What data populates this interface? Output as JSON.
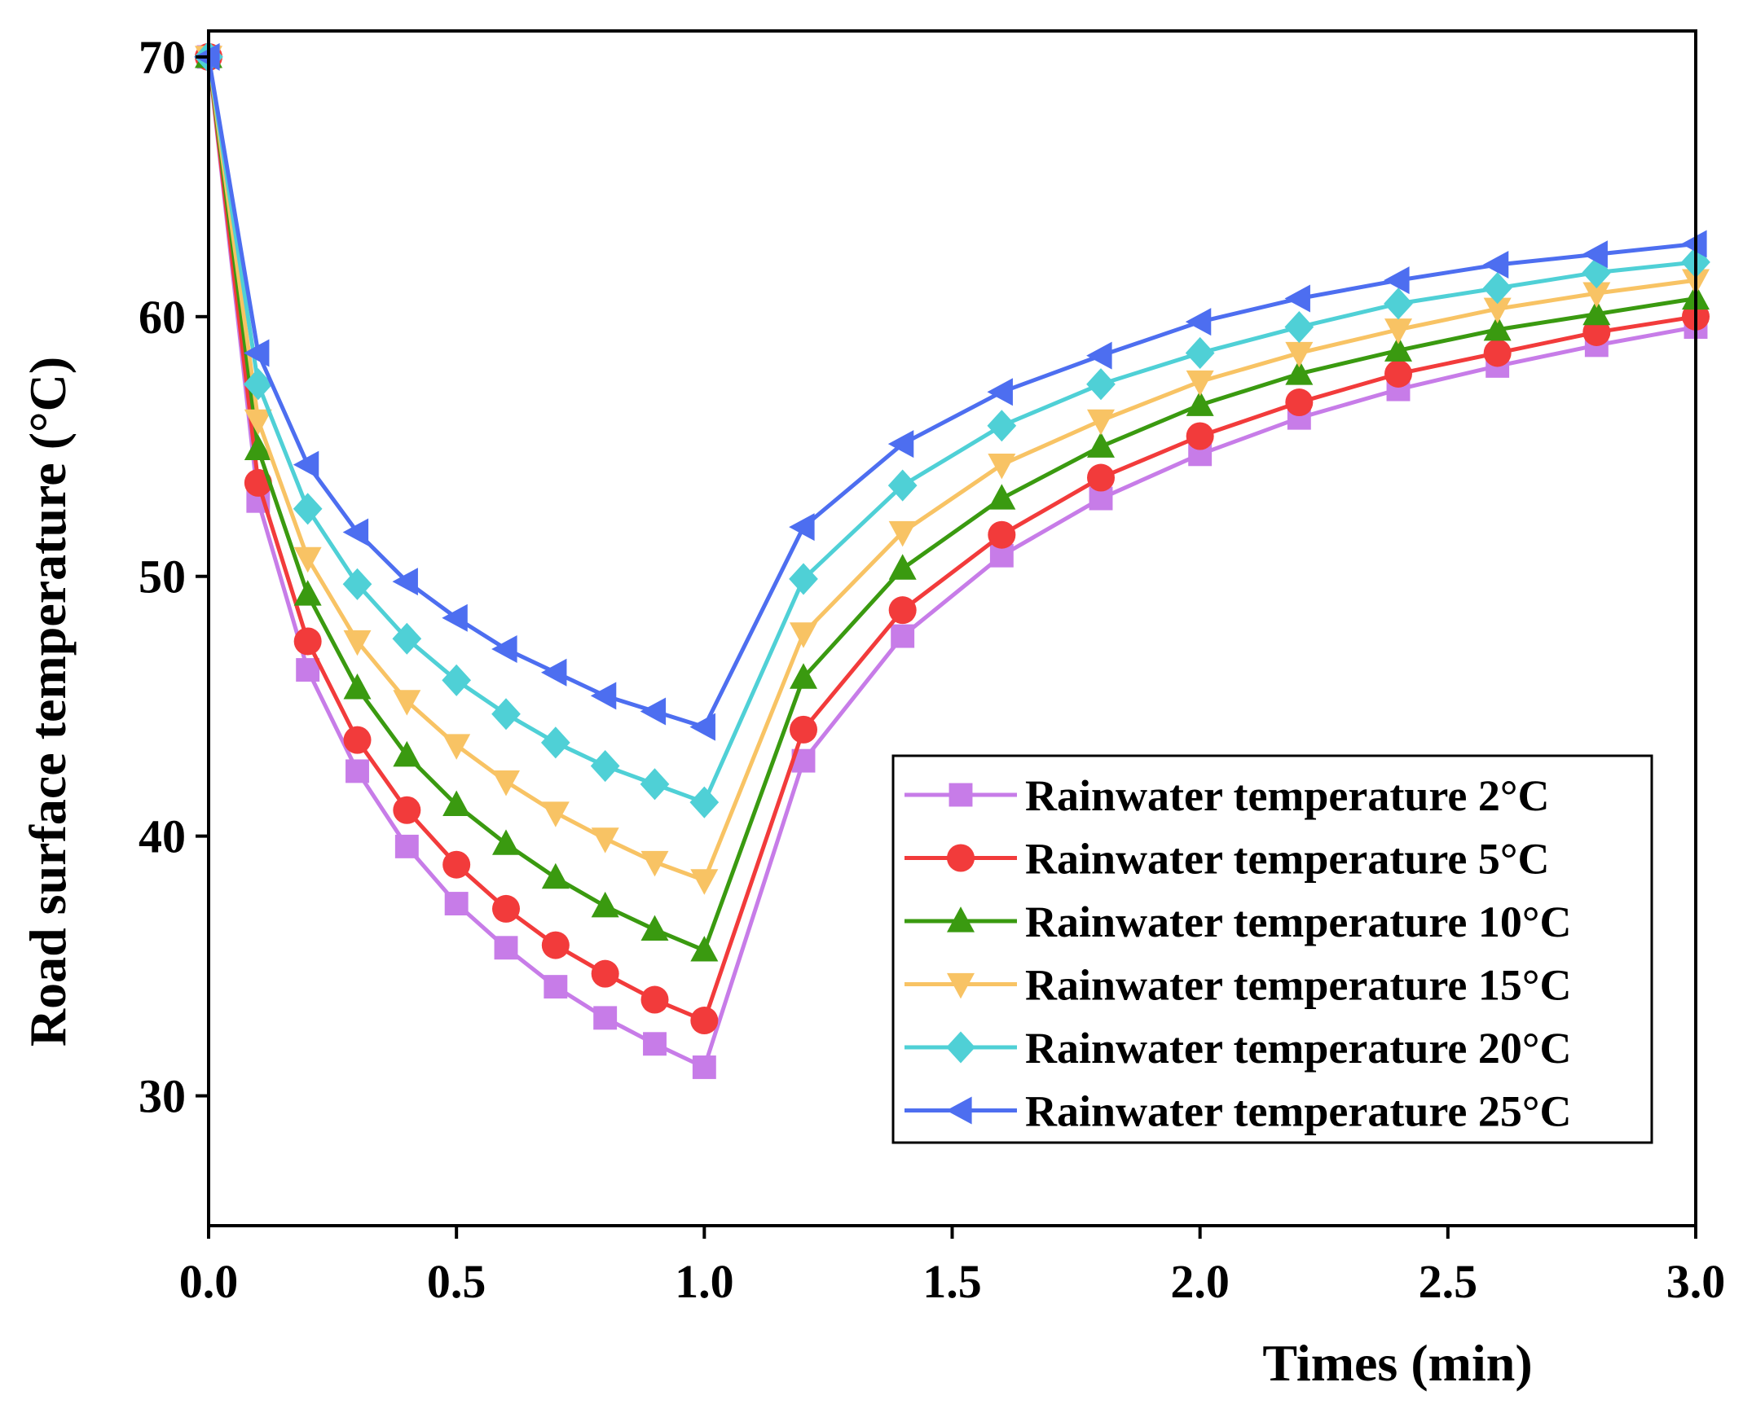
{
  "chart_data": {
    "type": "line",
    "xlabel": "Times (min)",
    "ylabel": "Road surface temperature (°C)",
    "xlim": [
      0,
      3
    ],
    "ylim": [
      25,
      71
    ],
    "xticks": [
      0,
      0.5,
      1,
      1.5,
      2,
      2.5,
      3
    ],
    "xtick_labels": [
      "0.0",
      "0.5",
      "1.0",
      "1.5",
      "2.0",
      "2.5",
      "3.0"
    ],
    "yticks": [
      30,
      40,
      50,
      60,
      70
    ],
    "ytick_labels": [
      "30",
      "40",
      "50",
      "60",
      "70"
    ],
    "grid": false,
    "legend_position": "lower-right",
    "x": [
      0,
      0.1,
      0.2,
      0.3,
      0.4,
      0.5,
      0.6,
      0.7,
      0.8,
      0.9,
      1.0,
      1.2,
      1.4,
      1.6,
      1.8,
      2.0,
      2.2,
      2.4,
      2.6,
      2.8,
      3.0
    ],
    "series": [
      {
        "name": "Rainwater temperature 2°C",
        "color": "#c77ce8",
        "marker": "square",
        "values": [
          70,
          52.9,
          46.4,
          42.5,
          39.6,
          37.4,
          35.7,
          34.2,
          33.0,
          32.0,
          31.1,
          42.9,
          47.7,
          50.8,
          53.0,
          54.7,
          56.1,
          57.2,
          58.1,
          58.9,
          59.6
        ]
      },
      {
        "name": "Rainwater temperature 5°C",
        "color": "#f23b3b",
        "marker": "circle",
        "values": [
          70,
          53.6,
          47.5,
          43.7,
          41.0,
          38.9,
          37.2,
          35.8,
          34.7,
          33.7,
          32.9,
          44.1,
          48.7,
          51.6,
          53.8,
          55.4,
          56.7,
          57.8,
          58.6,
          59.4,
          60.0
        ]
      },
      {
        "name": "Rainwater temperature 10°C",
        "color": "#3a9a10",
        "marker": "triangle-up",
        "values": [
          70,
          54.9,
          49.3,
          45.7,
          43.1,
          41.2,
          39.7,
          38.4,
          37.3,
          36.4,
          35.6,
          46.1,
          50.3,
          53.0,
          55.0,
          56.6,
          57.8,
          58.7,
          59.5,
          60.1,
          60.7
        ]
      },
      {
        "name": "Rainwater temperature 15°C",
        "color": "#f8c364",
        "marker": "triangle-down",
        "values": [
          70,
          56.0,
          50.7,
          47.5,
          45.2,
          43.5,
          42.1,
          40.9,
          39.9,
          39.0,
          38.3,
          47.8,
          51.7,
          54.3,
          56.0,
          57.5,
          58.6,
          59.5,
          60.3,
          60.9,
          61.4
        ]
      },
      {
        "name": "Rainwater temperature 20°C",
        "color": "#4fd0d6",
        "marker": "diamond",
        "values": [
          70,
          57.4,
          52.6,
          49.7,
          47.6,
          46.0,
          44.7,
          43.6,
          42.7,
          42.0,
          41.3,
          49.9,
          53.5,
          55.8,
          57.4,
          58.6,
          59.6,
          60.5,
          61.1,
          61.7,
          62.1
        ]
      },
      {
        "name": "Rainwater temperature 25°C",
        "color": "#4d6ef0",
        "marker": "triangle-left",
        "values": [
          70,
          58.6,
          54.3,
          51.7,
          49.8,
          48.4,
          47.2,
          46.3,
          45.4,
          44.8,
          44.2,
          51.9,
          55.1,
          57.1,
          58.5,
          59.8,
          60.7,
          61.4,
          62.0,
          62.4,
          62.8
        ]
      }
    ]
  }
}
